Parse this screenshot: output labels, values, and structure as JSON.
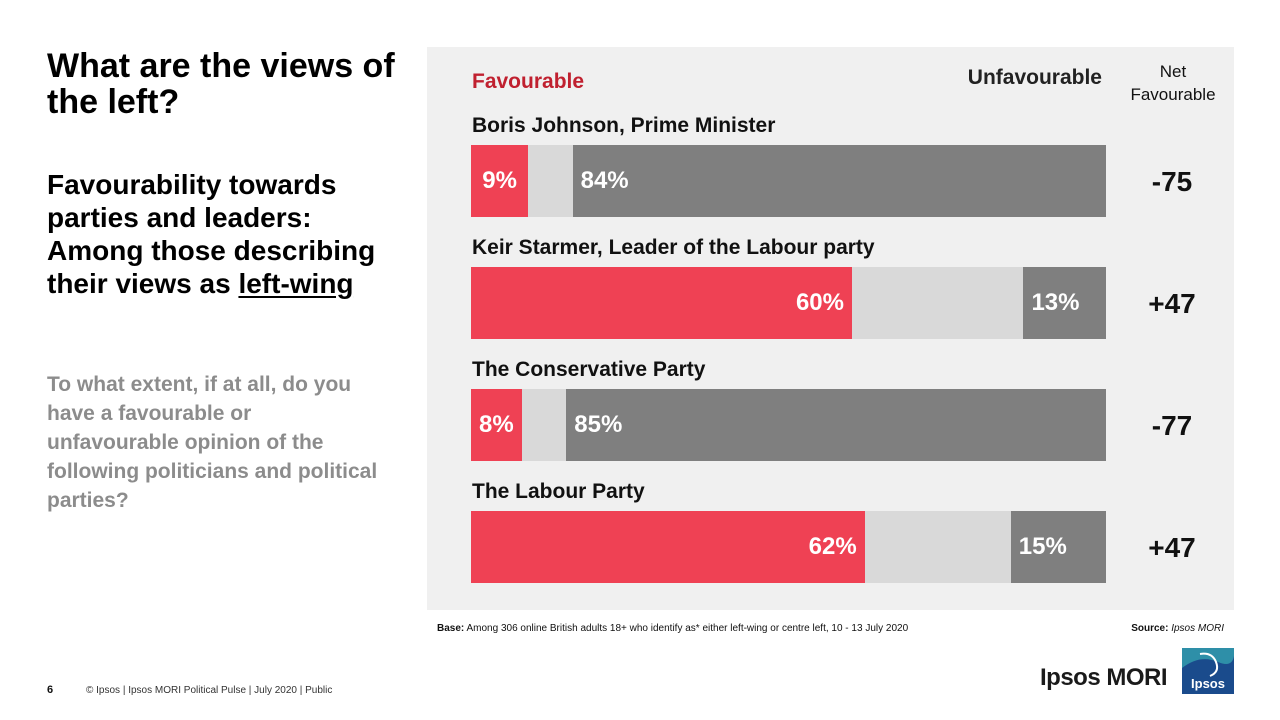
{
  "slide": {
    "title": "What are the views of the left?",
    "subtitle_prefix": "Favourability towards parties and leaders: Among those describing their views as ",
    "subtitle_emphasis": "left-wing",
    "question": "To what extent, if at all, do you have a favourable or unfavourable opinion of the following politicians and political parties?"
  },
  "chart_data": {
    "type": "bar",
    "orientation": "horizontal",
    "stacked": true,
    "legend": {
      "favourable": "Favourable",
      "unfavourable": "Unfavourable"
    },
    "net_header": "Net Favourable",
    "categories": [
      "Boris Johnson, Prime Minister",
      "Keir Starmer, Leader of the Labour party",
      "The Conservative Party",
      "The Labour Party"
    ],
    "series": [
      {
        "name": "Favourable",
        "values": [
          9,
          60,
          8,
          62
        ],
        "labels": [
          "9%",
          "60%",
          "8%",
          "62%"
        ]
      },
      {
        "values": [
          7,
          27,
          7,
          23
        ]
      },
      {
        "name": "Unfavourable",
        "values": [
          84,
          13,
          85,
          15
        ],
        "labels": [
          "84%",
          "13%",
          "85%",
          "15%"
        ]
      }
    ],
    "net": [
      "-75",
      "+47",
      "-77",
      "+47"
    ],
    "xlim": [
      0,
      100
    ],
    "colors": {
      "favourable": "#ef4154",
      "neither": "#d9d9d9",
      "unfavourable": "#7f7f7f",
      "legend_favourable_text": "#c0202f",
      "panel_background": "#f0f0f0"
    }
  },
  "footnotes": {
    "base_label": "Base:",
    "base_text": "Among 306 online British adults 18+ who identify as* either left-wing or centre left, 10 - 13 July 2020",
    "source_label": "Source:",
    "source_text": "Ipsos MORI"
  },
  "footer": {
    "page_number": "6",
    "text": "© Ipsos | Ipsos MORI Political Pulse | July 2020 | Public"
  },
  "logo": {
    "wordmark": "Ipsos MORI",
    "badge": "Ipsos",
    "badge_color": "#1a4b8c"
  }
}
